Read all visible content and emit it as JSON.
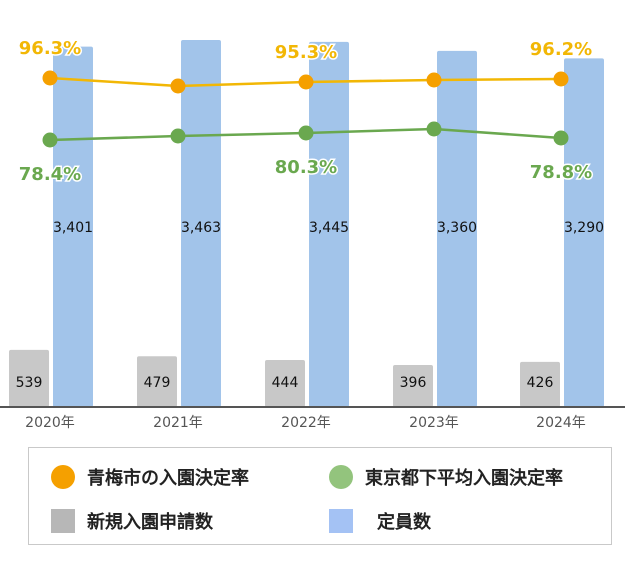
{
  "chart_data": {
    "type": "bar+line",
    "categories": [
      "2020年",
      "2021年",
      "2022年",
      "2023年",
      "2024年"
    ],
    "bar_series": [
      {
        "name": "新規入園申請数",
        "values": [
          539,
          479,
          444,
          396,
          426
        ],
        "color": "#c8c8c8"
      },
      {
        "name": "定員数",
        "values": [
          3401,
          3463,
          3445,
          3360,
          3290
        ],
        "color": "#a2c4ea"
      }
    ],
    "line_series": [
      {
        "name": "青梅市の入園決定率",
        "values": [
          96.3,
          95.2,
          95.3,
          95.9,
          96.2
        ],
        "labels": [
          "96.3%",
          "",
          "95.3%",
          "",
          "96.2%"
        ],
        "color": "#f2b705",
        "marker_color": "#f5a000"
      },
      {
        "name": "東京都下平均入園決定率",
        "values": [
          78.4,
          79.4,
          80.3,
          81.5,
          78.8
        ],
        "labels": [
          "78.4%",
          "",
          "80.3%",
          "",
          "78.8%"
        ],
        "color": "#6aa84f",
        "marker_color": "#6aa84f"
      }
    ],
    "bar_labels": {
      "new_applications": [
        "539",
        "479",
        "444",
        "396",
        "426"
      ],
      "capacity": [
        "3,401",
        "3,463",
        "3,445",
        "3,360",
        "3,290"
      ]
    },
    "bar_ylim": [
      0,
      3600
    ],
    "xlabel": "",
    "ylabel": ""
  },
  "legend": {
    "ome_rate": {
      "label": "青梅市の入園決定率",
      "color": "#f5a000"
    },
    "tokyo_rate": {
      "label": "東京都下平均入園決定率",
      "color": "#93c47d"
    },
    "applications": {
      "label": "新規入園申請数",
      "color": "#b7b7b7"
    },
    "capacity": {
      "label": "定員数",
      "color": "#a4c2f4"
    }
  }
}
